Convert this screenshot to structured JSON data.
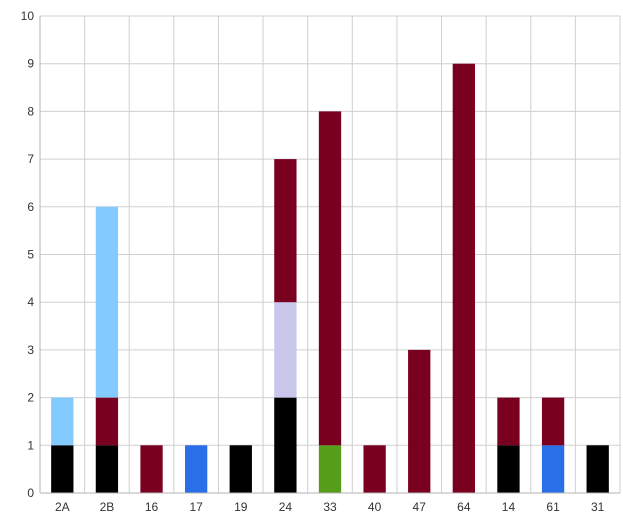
{
  "chart_data": {
    "type": "bar",
    "stacked": true,
    "categories": [
      "2A",
      "2B",
      "16",
      "17",
      "19",
      "24",
      "33",
      "40",
      "47",
      "64",
      "14",
      "61",
      "31"
    ],
    "ylim": [
      0,
      10
    ],
    "y_ticks": [
      "0",
      "1",
      "2",
      "3",
      "4",
      "5",
      "6",
      "7",
      "8",
      "9",
      "10"
    ],
    "grid": true,
    "legend": "none",
    "title": "",
    "xlabel": "",
    "ylabel": "",
    "series": [
      {
        "color": "#000000",
        "values": [
          1,
          1,
          0,
          0,
          1,
          2,
          0,
          0,
          0,
          0,
          1,
          0,
          1
        ]
      },
      {
        "color": "#579d1c",
        "values": [
          0,
          0,
          0,
          0,
          0,
          0,
          1,
          0,
          0,
          0,
          0,
          0,
          0
        ]
      },
      {
        "color": "#2a6ee8",
        "values": [
          0,
          0,
          0,
          1,
          0,
          0,
          0,
          0,
          0,
          0,
          0,
          1,
          0
        ]
      },
      {
        "color": "#c9c6ec",
        "values": [
          0,
          0,
          0,
          0,
          0,
          2,
          0,
          0,
          0,
          0,
          0,
          0,
          0
        ]
      },
      {
        "color": "#7a0020",
        "values": [
          0,
          1,
          1,
          0,
          0,
          3,
          7,
          1,
          3,
          9,
          1,
          1,
          0
        ]
      },
      {
        "color": "#83caff",
        "values": [
          1,
          4,
          0,
          0,
          0,
          0,
          0,
          0,
          0,
          0,
          0,
          0,
          0
        ]
      }
    ]
  }
}
